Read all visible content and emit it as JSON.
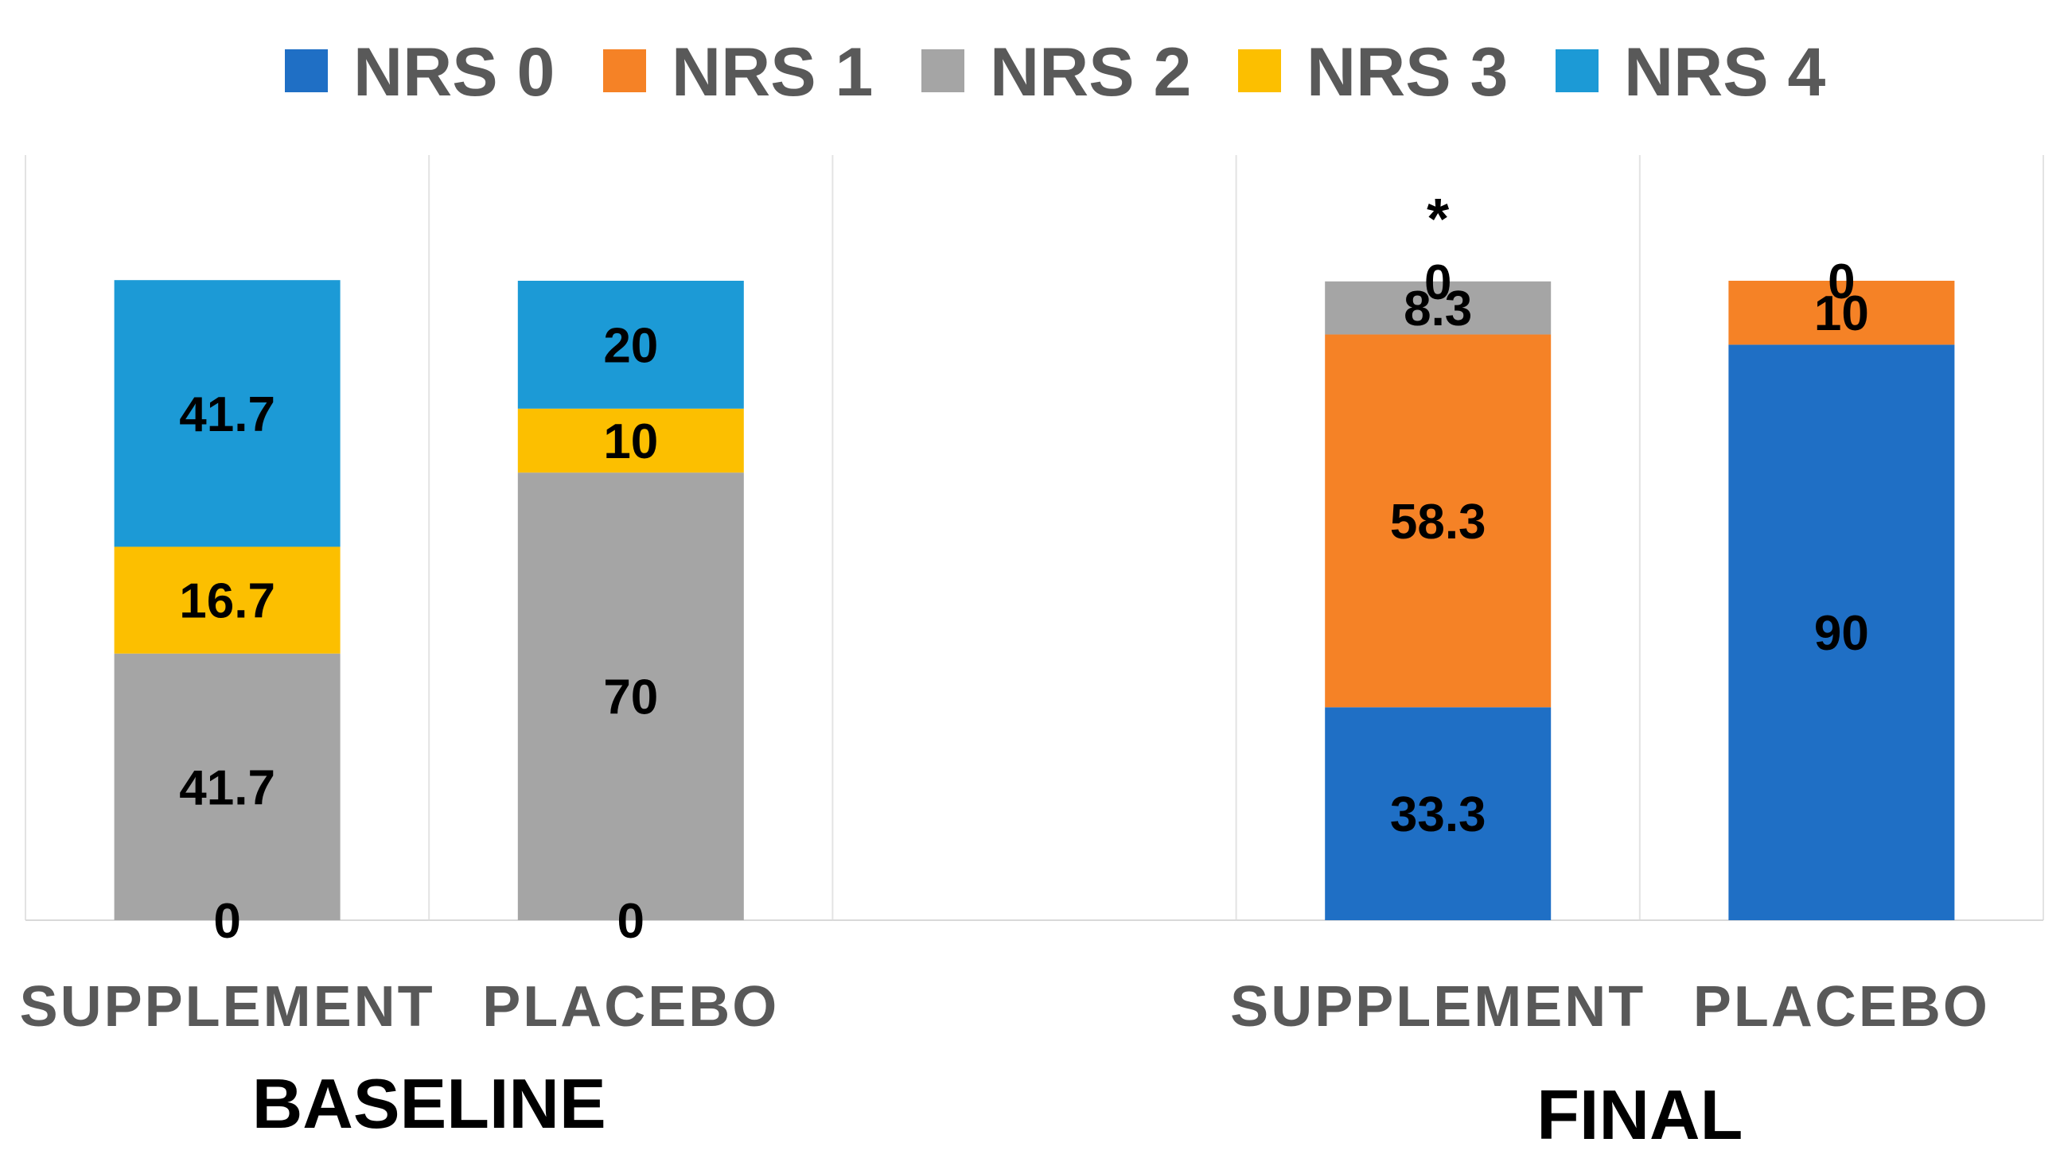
{
  "chart_data": {
    "type": "bar",
    "stacked": true,
    "percent_stacked": true,
    "title": "",
    "xlabel": "",
    "ylabel": "",
    "ylim": [
      0,
      100
    ],
    "grid": "vertical separators",
    "legend_position": "top",
    "series": [
      {
        "name": "NRS 0",
        "color": "#1f6fc5",
        "values": [
          0,
          0,
          33.3,
          90
        ]
      },
      {
        "name": "NRS 1",
        "color": "#f58226",
        "values": [
          0,
          0,
          58.3,
          10
        ]
      },
      {
        "name": "NRS 2",
        "color": "#a5a5a5",
        "values": [
          41.7,
          70,
          8.3,
          0
        ]
      },
      {
        "name": "NRS 3",
        "color": "#fcbf00",
        "values": [
          16.7,
          10,
          0,
          0
        ]
      },
      {
        "name": "NRS 4",
        "color": "#1c9ad6",
        "values": [
          41.7,
          20,
          0,
          0
        ]
      }
    ],
    "groups": [
      {
        "label": "BASELINE",
        "bars": [
          {
            "category": "SUPPLEMENT",
            "labels": [
              {
                "series": 0,
                "text": "0"
              },
              {
                "series": 2,
                "text": "41.7"
              },
              {
                "series": 3,
                "text": "16.7"
              },
              {
                "series": 4,
                "text": "41.7"
              }
            ]
          },
          {
            "category": "PLACEBO",
            "labels": [
              {
                "series": 0,
                "text": "0"
              },
              {
                "series": 2,
                "text": "70"
              },
              {
                "series": 3,
                "text": "10"
              },
              {
                "series": 4,
                "text": "20"
              }
            ]
          }
        ]
      },
      {
        "label": "FINAL",
        "bars": [
          {
            "category": "SUPPLEMENT",
            "annotation": "*",
            "labels": [
              {
                "series": 0,
                "text": "33.3"
              },
              {
                "series": 1,
                "text": "58.3"
              },
              {
                "series": 2,
                "text": "8.3"
              },
              {
                "series": 3,
                "text": "0"
              }
            ]
          },
          {
            "category": "PLACEBO",
            "labels": [
              {
                "series": 0,
                "text": "90"
              },
              {
                "series": 1,
                "text": "10"
              },
              {
                "series": 2,
                "text": "0"
              }
            ]
          }
        ]
      }
    ]
  }
}
